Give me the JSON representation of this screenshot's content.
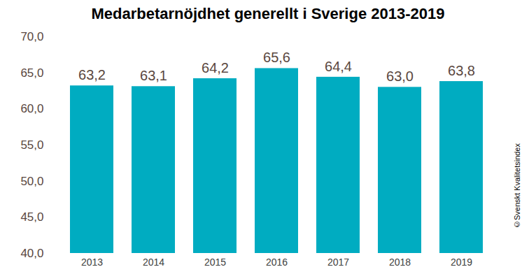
{
  "chart_data": {
    "type": "bar",
    "title": "Medarbetarnöjdhet generellt i Sverige 2013-2019",
    "categories": [
      "2013",
      "2014",
      "2015",
      "2016",
      "2017",
      "2018",
      "2019"
    ],
    "values": [
      63.2,
      63.1,
      64.2,
      65.6,
      64.4,
      63.0,
      63.8
    ],
    "value_labels": [
      "63,2",
      "63,1",
      "64,2",
      "65,6",
      "64,4",
      "63,0",
      "63,8"
    ],
    "color": "#00acc1",
    "ylim": [
      40,
      70
    ],
    "yticks": [
      {
        "value": 40,
        "label": "40,0"
      },
      {
        "value": 45,
        "label": "45,0"
      },
      {
        "value": 50,
        "label": "50,0"
      },
      {
        "value": 55,
        "label": "55,0"
      },
      {
        "value": 60,
        "label": "60,0"
      },
      {
        "value": 65,
        "label": "65,0"
      },
      {
        "value": 70,
        "label": "70,0"
      }
    ],
    "grid": false,
    "data_labels": true,
    "annotations": [
      "©Svenskt Kvalitetsindex"
    ]
  }
}
